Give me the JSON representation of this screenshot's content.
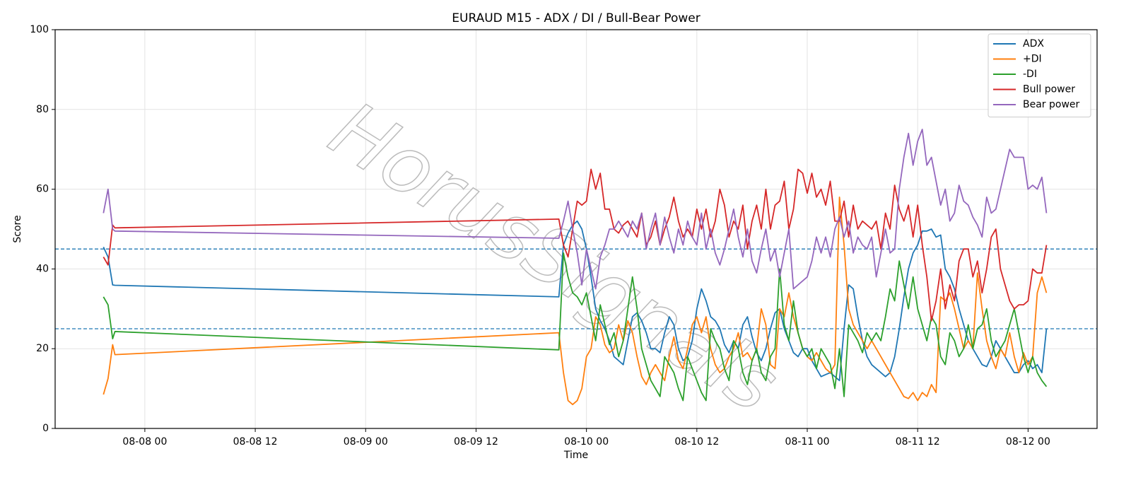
{
  "chart_data": {
    "type": "line",
    "title": "EURAUD M15 - ADX / DI / Bull-Bear Power",
    "x_label": "Time",
    "y_label": "Score",
    "watermark": "HorusSignals",
    "ylim": [
      0,
      100
    ],
    "yticks": [
      0,
      20,
      40,
      60,
      80,
      100
    ],
    "xlim": [
      "08-07 14:15",
      "08-12 07:30"
    ],
    "xticks": [
      "08-08 00",
      "08-08 12",
      "08-09 00",
      "08-09 12",
      "08-10 00",
      "08-10 12",
      "08-11 00",
      "08-11 12",
      "08-12 00"
    ],
    "grid": true,
    "legend": "upper right",
    "hlines": [
      45,
      25
    ],
    "hline_color": "#1f77b4",
    "x": [
      "08-07 19:30",
      "08-07 20:00",
      "08-07 20:30",
      "08-07 20:45",
      "08-09 21:00",
      "08-09 21:30",
      "08-09 22:00",
      "08-09 22:30",
      "08-09 23:00",
      "08-09 23:30",
      "08-10 00:00",
      "08-10 00:30",
      "08-10 01:00",
      "08-10 01:30",
      "08-10 02:00",
      "08-10 02:30",
      "08-10 03:00",
      "08-10 03:30",
      "08-10 04:00",
      "08-10 04:30",
      "08-10 05:00",
      "08-10 05:30",
      "08-10 06:00",
      "08-10 06:30",
      "08-10 07:00",
      "08-10 07:30",
      "08-10 08:00",
      "08-10 08:30",
      "08-10 09:00",
      "08-10 09:30",
      "08-10 10:00",
      "08-10 10:30",
      "08-10 11:00",
      "08-10 11:30",
      "08-10 12:00",
      "08-10 12:30",
      "08-10 13:00",
      "08-10 13:30",
      "08-10 14:00",
      "08-10 14:30",
      "08-10 15:00",
      "08-10 15:30",
      "08-10 16:00",
      "08-10 16:30",
      "08-10 17:00",
      "08-10 17:30",
      "08-10 18:00",
      "08-10 18:30",
      "08-10 19:00",
      "08-10 19:30",
      "08-10 20:00",
      "08-10 20:30",
      "08-10 21:00",
      "08-10 21:30",
      "08-10 22:00",
      "08-10 22:30",
      "08-10 23:00",
      "08-10 23:30",
      "08-11 00:00",
      "08-11 00:30",
      "08-11 01:00",
      "08-11 01:30",
      "08-11 02:00",
      "08-11 02:30",
      "08-11 03:00",
      "08-11 03:30",
      "08-11 04:00",
      "08-11 04:30",
      "08-11 05:00",
      "08-11 05:30",
      "08-11 06:00",
      "08-11 06:30",
      "08-11 07:00",
      "08-11 07:30",
      "08-11 08:00",
      "08-11 08:30",
      "08-11 09:00",
      "08-11 09:30",
      "08-11 10:00",
      "08-11 10:30",
      "08-11 11:00",
      "08-11 11:30",
      "08-11 12:00",
      "08-11 12:30",
      "08-11 13:00",
      "08-11 13:30",
      "08-11 14:00",
      "08-11 14:30",
      "08-11 15:00",
      "08-11 15:30",
      "08-11 16:00",
      "08-11 16:30",
      "08-11 17:00",
      "08-11 17:30",
      "08-11 18:00",
      "08-11 18:30",
      "08-11 19:00",
      "08-11 19:30",
      "08-11 20:00",
      "08-11 20:30",
      "08-11 21:00",
      "08-11 21:30",
      "08-11 22:00",
      "08-11 22:30",
      "08-11 23:00",
      "08-11 23:30",
      "08-12 00:00",
      "08-12 00:30",
      "08-12 01:00",
      "08-12 01:30",
      "08-12 02:00"
    ],
    "series": [
      {
        "name": "ADX",
        "color": "#1f77b4",
        "values": [
          45.5,
          43,
          36,
          35.9,
          33,
          46,
          49,
          51,
          52,
          50,
          45,
          38,
          30,
          27,
          25,
          22,
          18,
          17,
          16,
          22,
          28,
          29,
          27,
          24,
          20,
          20,
          19,
          24,
          28,
          26,
          20,
          17,
          18,
          22,
          30,
          35,
          32,
          28,
          27,
          25,
          21,
          19,
          22,
          20,
          26,
          28,
          23,
          19,
          17,
          20,
          25,
          29,
          30,
          25,
          22,
          19,
          18,
          20,
          20,
          17,
          15,
          13,
          13.5,
          14,
          13,
          12,
          25,
          36,
          35,
          28,
          22,
          18,
          16,
          15,
          14,
          13,
          14,
          18,
          25,
          33,
          40,
          44,
          46,
          49.5,
          49.5,
          50,
          48,
          48.5,
          40,
          38,
          35,
          30,
          26,
          22,
          20,
          18,
          16,
          15.5,
          18,
          22,
          20,
          18,
          16,
          14,
          14,
          16,
          17,
          15,
          16,
          14,
          25
        ]
      },
      {
        "name": "+DI",
        "color": "#ff7f0e",
        "values": [
          8.5,
          12.5,
          21,
          18.5,
          24,
          14,
          7,
          6,
          7,
          10,
          18,
          20,
          28,
          26,
          21,
          19,
          20,
          26,
          22,
          27,
          24,
          18,
          13,
          11,
          14,
          16,
          14,
          12,
          18,
          23,
          17,
          15,
          20,
          26,
          28,
          24,
          28,
          20,
          16,
          14,
          15,
          18,
          20,
          24,
          18,
          19,
          17,
          20,
          30,
          26,
          16,
          15,
          30,
          28,
          34,
          28,
          24,
          20,
          18,
          17,
          19,
          17,
          15,
          14,
          16,
          58,
          46,
          30,
          26,
          24,
          22,
          20,
          22,
          20,
          18,
          16,
          14,
          12,
          10,
          8,
          7.5,
          9,
          7,
          9,
          8,
          11,
          9,
          33,
          32,
          34,
          30,
          25,
          20,
          22,
          20,
          39,
          30,
          22,
          18,
          15,
          20,
          18,
          24,
          18,
          14,
          19,
          16,
          18,
          34,
          38,
          34
        ]
      },
      {
        "name": "-DI",
        "color": "#2ca02c",
        "values": [
          33,
          31,
          22.5,
          24.3,
          19.7,
          44,
          38,
          34,
          33,
          31,
          34,
          28,
          22,
          31,
          26,
          21,
          24,
          18,
          22,
          30,
          38,
          30,
          20,
          16,
          12,
          10,
          8,
          18,
          16,
          14,
          10,
          7,
          18,
          15,
          12,
          9,
          7,
          25,
          22,
          20,
          15,
          12,
          22,
          20,
          14,
          11,
          17,
          20,
          14,
          12,
          18,
          20,
          40,
          26,
          22,
          32,
          24,
          20,
          18,
          20,
          15,
          20,
          18,
          16,
          10,
          20,
          8,
          26,
          24,
          22,
          19,
          24,
          22,
          24,
          22,
          28,
          35,
          32,
          42,
          36,
          30,
          38,
          30,
          26,
          22,
          28,
          26,
          18,
          16,
          24,
          22,
          18,
          20,
          26,
          20,
          25,
          26,
          30,
          22,
          18,
          20,
          22,
          26,
          30,
          24,
          18,
          14,
          18,
          14,
          12,
          10.5
        ]
      },
      {
        "name": "Bull power",
        "color": "#d62728",
        "values": [
          43,
          41,
          51,
          50.3,
          52.5,
          46,
          43,
          50,
          57,
          56,
          57,
          65,
          60,
          64,
          55,
          55,
          50,
          49,
          51,
          52,
          50,
          48,
          54,
          46,
          48,
          52,
          46,
          50,
          53,
          58,
          52,
          48,
          50,
          48,
          55,
          50,
          55,
          48,
          52,
          60,
          56,
          48,
          52,
          50,
          56,
          45,
          52,
          56,
          50,
          60,
          50,
          56,
          57,
          62,
          50,
          55,
          65,
          64,
          59,
          64,
          58,
          60,
          56,
          62,
          52,
          52,
          57,
          48,
          56,
          50,
          52,
          51,
          50,
          52,
          45,
          54,
          50,
          61,
          55,
          52,
          56,
          48,
          56,
          46,
          38,
          27,
          32,
          40,
          30,
          36,
          32,
          42,
          45,
          45,
          38,
          42,
          34,
          40,
          48,
          50,
          40,
          36,
          32,
          30,
          31,
          31,
          32,
          40,
          39,
          39,
          46
        ]
      },
      {
        "name": "Bear power",
        "color": "#9467bd",
        "values": [
          54,
          60,
          50,
          49.5,
          47.7,
          52,
          57,
          50,
          44,
          36,
          45,
          40,
          35,
          43,
          46,
          50,
          50,
          52,
          50,
          48,
          52,
          50,
          54,
          45,
          50,
          54,
          46,
          53,
          48,
          44,
          50,
          46,
          52,
          48,
          46,
          54,
          45,
          50,
          44,
          41,
          45,
          50,
          55,
          48,
          43,
          50,
          42,
          39,
          45,
          50,
          42,
          45,
          38,
          44,
          50,
          35,
          36,
          37,
          38,
          42,
          48,
          44,
          48,
          43,
          50,
          53,
          48,
          52,
          44,
          48,
          46,
          45,
          48,
          38,
          44,
          50,
          44,
          45,
          60,
          68,
          74,
          66,
          72,
          75,
          66,
          68,
          62,
          56,
          60,
          52,
          54,
          61,
          57,
          56,
          53,
          51,
          48,
          58,
          54,
          55,
          60,
          65,
          70,
          68,
          68,
          68,
          60,
          61,
          60,
          63,
          54
        ]
      }
    ]
  }
}
